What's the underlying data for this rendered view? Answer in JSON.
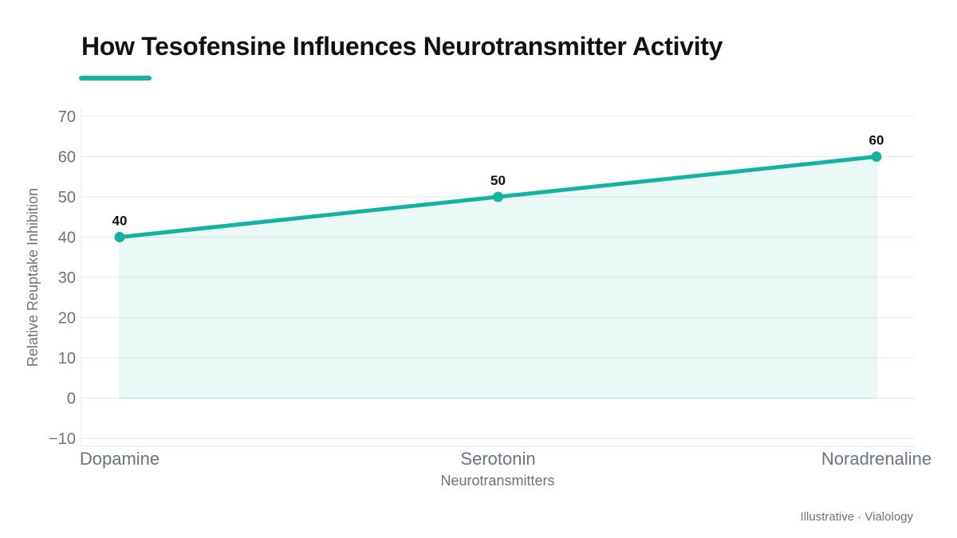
{
  "header": {
    "title": "How Tesofensine Influences Neurotransmitter Activity"
  },
  "footer": {
    "source": "Illustrative · Vialology"
  },
  "colors": {
    "accent": "#14b3a0",
    "area_fill": "#14b3a0",
    "grid": "#e5e7eb",
    "axis_text": "#6b7280",
    "title_text": "#111111"
  },
  "chart_data": {
    "type": "area",
    "categories": [
      "Dopamine",
      "Serotonin",
      "Noradrenaline"
    ],
    "series": [
      {
        "values": [
          40,
          50,
          60
        ]
      }
    ],
    "data_labels": [
      "40",
      "50",
      "60"
    ],
    "xlabel": "Neurotransmitters",
    "ylabel": "Relative Reuptake Inhibition",
    "ylim": [
      -10,
      70
    ],
    "yticks": [
      70,
      60,
      50,
      40,
      30,
      20,
      10,
      0,
      -10
    ],
    "ytick_labels": [
      "70",
      "60",
      "50",
      "40",
      "30",
      "20",
      "10",
      "0",
      "−10"
    ],
    "grid": true,
    "legend": "none"
  }
}
